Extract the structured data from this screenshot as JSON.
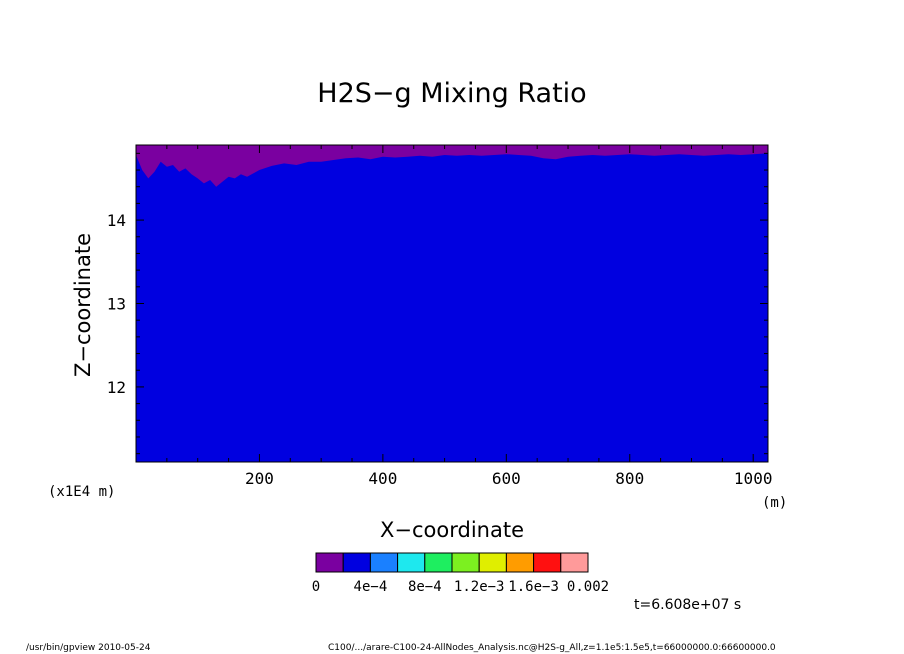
{
  "chart_data": {
    "type": "heatmap",
    "title": "H2S−g Mixing Ratio",
    "xlabel": "X−coordinate",
    "ylabel": "Z−coordinate",
    "x_unit": "(m)",
    "y_unit": "(x1E4 m)",
    "xlim": [
      0,
      1024
    ],
    "ylim": [
      11.1,
      14.9
    ],
    "x_ticks": [
      200,
      400,
      600,
      800,
      1000
    ],
    "y_ticks": [
      12,
      13,
      14
    ],
    "x_tick_labels": [
      "200",
      "400",
      "600",
      "800",
      "1000"
    ],
    "y_tick_labels": [
      "12",
      "13",
      "14"
    ],
    "grid": false,
    "colorbar": {
      "levels": [
        0,
        0.0002,
        0.0004,
        0.0006,
        0.0008,
        0.001,
        0.0012,
        0.0014,
        0.0016,
        0.0018,
        0.002
      ],
      "colors": [
        "#7a00a0",
        "#0000e0",
        "#1a80ff",
        "#1ee8ee",
        "#1eee60",
        "#7cf020",
        "#e0ee00",
        "#ff9c00",
        "#ff1010",
        "#ff9a9a"
      ],
      "labels": [
        "0",
        "4e−4",
        "8e−4",
        "1.2e−3",
        "1.6e−3",
        "0.002"
      ]
    },
    "boundary_profile": {
      "x": [
        0,
        10,
        20,
        30,
        40,
        50,
        60,
        70,
        80,
        90,
        100,
        110,
        120,
        130,
        140,
        150,
        160,
        170,
        180,
        190,
        200,
        220,
        240,
        260,
        280,
        300,
        320,
        340,
        360,
        380,
        400,
        420,
        440,
        460,
        480,
        500,
        520,
        540,
        560,
        580,
        600,
        620,
        640,
        660,
        680,
        700,
        720,
        740,
        760,
        780,
        800,
        820,
        840,
        860,
        880,
        900,
        920,
        940,
        960,
        980,
        1000,
        1024
      ],
      "z": [
        14.78,
        14.6,
        14.5,
        14.58,
        14.7,
        14.64,
        14.66,
        14.58,
        14.62,
        14.55,
        14.5,
        14.44,
        14.48,
        14.4,
        14.46,
        14.52,
        14.5,
        14.55,
        14.52,
        14.56,
        14.6,
        14.65,
        14.68,
        14.66,
        14.7,
        14.7,
        14.72,
        14.74,
        14.75,
        14.73,
        14.76,
        14.75,
        14.76,
        14.77,
        14.76,
        14.78,
        14.77,
        14.78,
        14.77,
        14.78,
        14.79,
        14.78,
        14.77,
        14.74,
        14.73,
        14.76,
        14.77,
        14.78,
        14.77,
        14.78,
        14.79,
        14.78,
        14.77,
        14.78,
        14.79,
        14.78,
        14.77,
        14.78,
        14.79,
        14.78,
        14.79,
        14.8
      ]
    },
    "upper_value_color": "#7a00a0",
    "lower_value_color": "#0000e0"
  },
  "annotation": {
    "time": "t=6.608e+07 s"
  },
  "footer": {
    "left": "/usr/bin/gpview  2010-05-24",
    "right": "C100/.../arare-C100-24-AllNodes_Analysis.nc@H2S-g_All,z=1.1e5:1.5e5,t=66000000.0:66600000.0"
  }
}
